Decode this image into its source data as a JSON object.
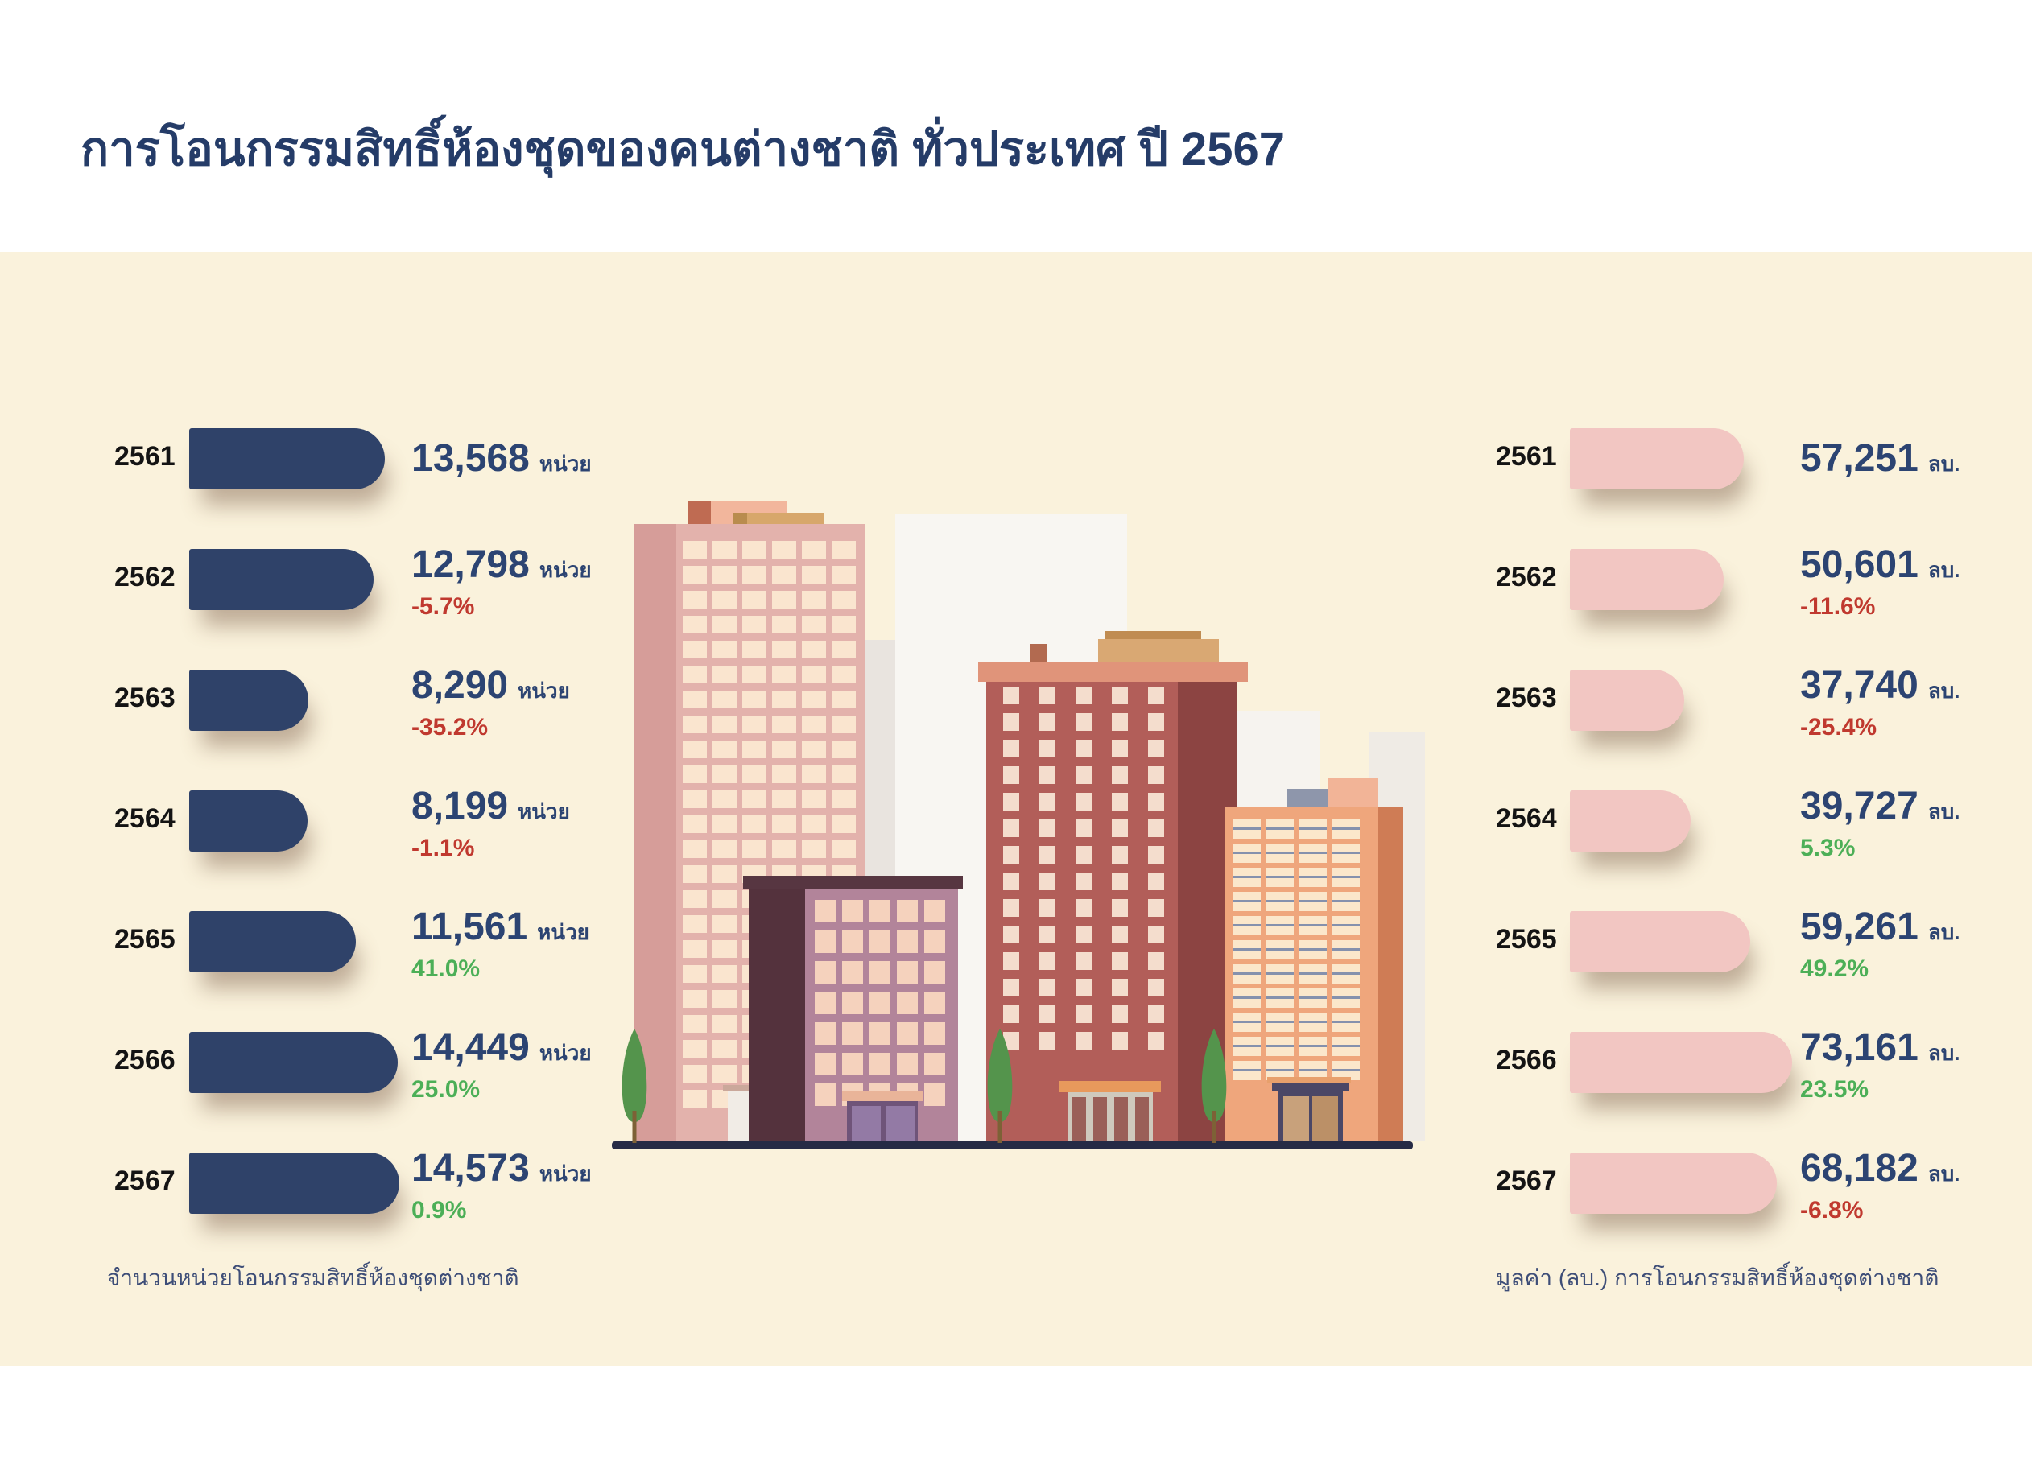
{
  "title": "การโอนกรรมสิทธิ์ห้องชุดของคนต่างชาติ ทั่วประเทศ ปี 2567",
  "chart_data": [
    {
      "type": "bar",
      "orientation": "horizontal",
      "series_name": "จำนวนหน่วยโอนกรรมสิทธิ์ห้องชุดต่างชาติ",
      "unit": "หน่วย",
      "categories": [
        "2561",
        "2562",
        "2563",
        "2564",
        "2565",
        "2566",
        "2567"
      ],
      "values": [
        13568,
        12798,
        8290,
        8199,
        11561,
        14449,
        14573
      ],
      "pct_change": [
        null,
        -5.7,
        -35.2,
        -1.1,
        41.0,
        25.0,
        0.9
      ],
      "legend_position": "none",
      "grid": false
    },
    {
      "type": "bar",
      "orientation": "horizontal",
      "series_name": "มูลค่า (ลบ.) การโอนกรรมสิทธิ์ห้องชุดต่างชาติ",
      "unit": "ลบ.",
      "categories": [
        "2561",
        "2562",
        "2563",
        "2564",
        "2565",
        "2566",
        "2567"
      ],
      "values": [
        57251,
        50601,
        37740,
        39727,
        59261,
        73161,
        68182
      ],
      "pct_change": [
        null,
        -11.6,
        -25.4,
        5.3,
        49.2,
        23.5,
        -6.8
      ],
      "legend_position": "none",
      "grid": false
    }
  ],
  "colors": {
    "title": "#253c68",
    "background": "#faf2dc",
    "bar_left": "#2f4269",
    "bar_right": "#f2c6c2",
    "value_text": "#2c4472",
    "year_text": "#141414",
    "negative": "#c0392f",
    "positive": "#4caf57"
  }
}
